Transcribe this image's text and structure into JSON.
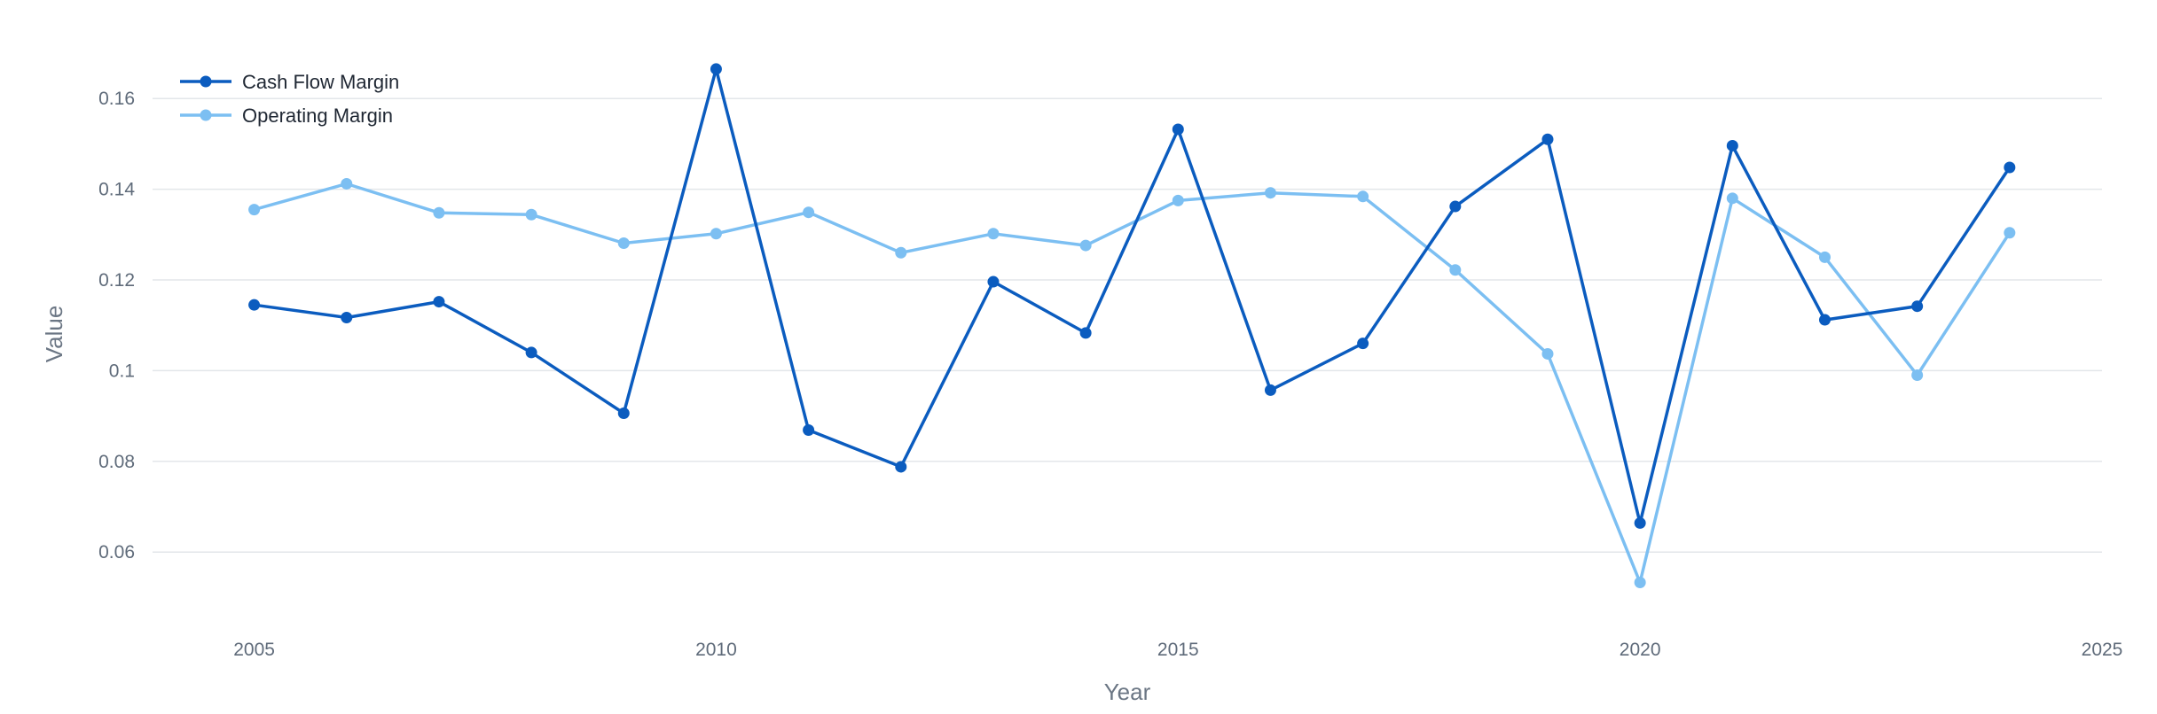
{
  "chart_data": {
    "type": "line",
    "title": "",
    "xlabel": "Year",
    "ylabel": "Value",
    "xlim": [
      2003.9,
      2025
    ],
    "ylim": [
      0.045,
      0.17
    ],
    "x_ticks": [
      2005,
      2010,
      2015,
      2020,
      2025
    ],
    "x_tick_labels": [
      "2005",
      "2010",
      "2015",
      "2020",
      "2025"
    ],
    "y_ticks": [
      0.06,
      0.08,
      0.1,
      0.12,
      0.14,
      0.16
    ],
    "y_tick_labels": [
      "0.06",
      "0.08",
      "0.1",
      "0.12",
      "0.14",
      "0.16"
    ],
    "grid": "horizontal",
    "legend_position": "top-left",
    "x": [
      2005,
      2006,
      2007,
      2008,
      2009,
      2010,
      2011,
      2012,
      2013,
      2014,
      2015,
      2016,
      2017,
      2018,
      2019,
      2020,
      2021,
      2022,
      2023,
      2024
    ],
    "series": [
      {
        "name": "Cash Flow Margin",
        "color": "#0b5cbf",
        "values": [
          0.1145,
          0.1117,
          0.1152,
          0.104,
          0.0906,
          0.1665,
          0.0869,
          0.0788,
          0.1196,
          0.1083,
          0.1532,
          0.0957,
          0.106,
          0.1362,
          0.151,
          0.0664,
          0.1496,
          0.1112,
          0.1142,
          0.1448
        ]
      },
      {
        "name": "Operating Margin",
        "color": "#7cbff2",
        "values": [
          0.1355,
          0.1412,
          0.1348,
          0.1344,
          0.1281,
          0.1302,
          0.1349,
          0.126,
          0.1302,
          0.1276,
          0.1375,
          0.1392,
          0.1384,
          0.1222,
          0.1037,
          0.0533,
          0.138,
          0.125,
          0.099,
          0.1304
        ]
      }
    ]
  }
}
